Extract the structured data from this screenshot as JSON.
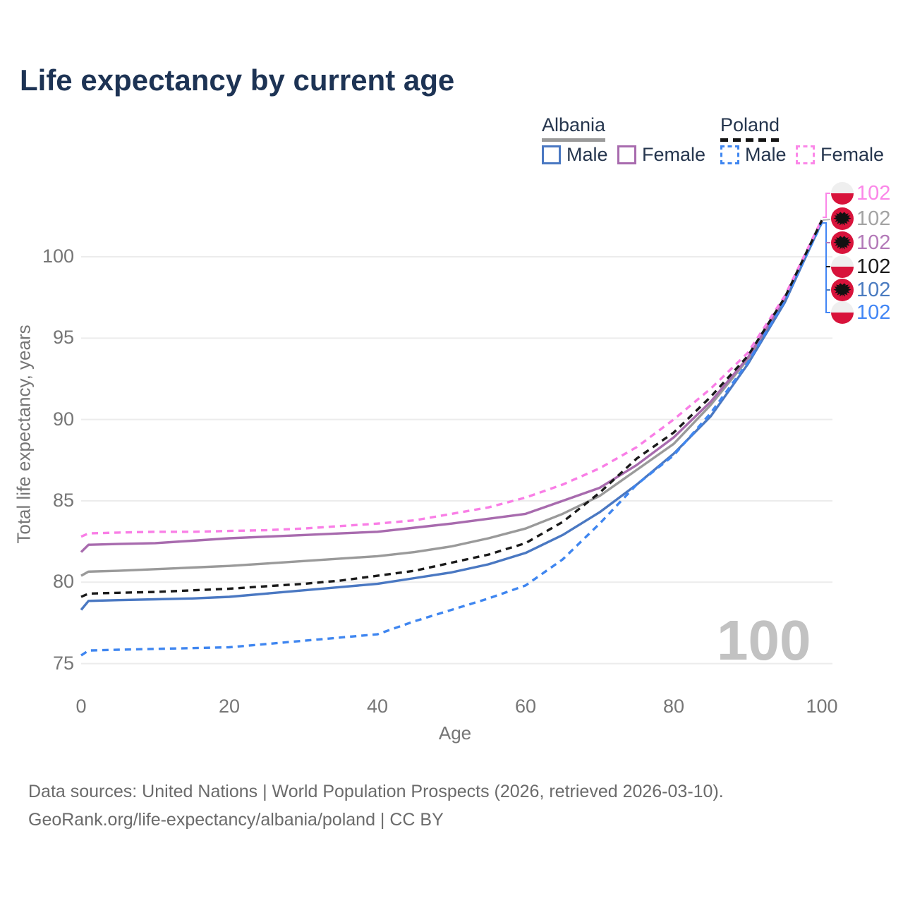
{
  "title": "Life expectancy by current age",
  "legend": {
    "groups": [
      {
        "label": "Albania",
        "line_style": "solid",
        "underline_color": "#9a9a9a",
        "items": [
          {
            "label": "Male",
            "color": "#4a78c2",
            "dash": false
          },
          {
            "label": "Female",
            "color": "#a86bae",
            "dash": false
          }
        ]
      },
      {
        "label": "Poland",
        "line_style": "dashed",
        "underline_color": "#151515",
        "items": [
          {
            "label": "Male",
            "color": "#3f86f0",
            "dash": true
          },
          {
            "label": "Female",
            "color": "#fb87e8",
            "dash": true
          }
        ]
      }
    ]
  },
  "watermark": "100",
  "footer": {
    "line1": "Data sources: United Nations | World Population Prospects (2026, retrieved 2026-03-10).",
    "line2": "GeoRank.org/life-expectancy/albania/poland | CC BY"
  },
  "chart_data": {
    "type": "line",
    "title": "Life expectancy by current age",
    "xlabel": "Age",
    "ylabel": "Total life expectancy, years",
    "xlim": [
      0,
      100
    ],
    "ylim": [
      75,
      103
    ],
    "x_ticks": [
      0,
      20,
      40,
      60,
      80,
      100
    ],
    "y_ticks": [
      75,
      80,
      85,
      90,
      95,
      100
    ],
    "grid": "horizontal-only",
    "legend_position": "top-right",
    "x": [
      0,
      1,
      5,
      10,
      15,
      20,
      25,
      30,
      35,
      40,
      45,
      50,
      55,
      60,
      65,
      70,
      75,
      80,
      85,
      90,
      95,
      100
    ],
    "series": [
      {
        "name": "Albania Total",
        "country": "Albania",
        "sex": "total",
        "color": "#9a9a9a",
        "dash": false,
        "values": [
          80.4,
          80.65,
          80.7,
          80.8,
          80.9,
          81.0,
          81.15,
          81.3,
          81.45,
          81.6,
          81.85,
          82.2,
          82.7,
          83.3,
          84.2,
          85.3,
          86.9,
          88.5,
          90.9,
          93.7,
          97.3,
          102.2
        ]
      },
      {
        "name": "Albania Female",
        "country": "Albania",
        "sex": "female",
        "color": "#a86bae",
        "dash": false,
        "values": [
          81.85,
          82.3,
          82.35,
          82.4,
          82.55,
          82.7,
          82.8,
          82.9,
          83.0,
          83.1,
          83.35,
          83.6,
          83.9,
          84.2,
          85.0,
          85.8,
          87.2,
          88.9,
          91.1,
          93.8,
          97.4,
          102.2
        ]
      },
      {
        "name": "Albania Male",
        "country": "Albania",
        "sex": "male",
        "color": "#4a78c2",
        "dash": false,
        "values": [
          78.3,
          78.85,
          78.9,
          78.95,
          79.0,
          79.1,
          79.3,
          79.5,
          79.7,
          79.9,
          80.25,
          80.6,
          81.1,
          81.8,
          82.9,
          84.3,
          86.0,
          87.9,
          90.2,
          93.4,
          97.2,
          102.15
        ]
      },
      {
        "name": "Poland Female",
        "country": "Poland",
        "sex": "female",
        "color": "#f97ee6",
        "dash": true,
        "values": [
          82.8,
          83.0,
          83.05,
          83.1,
          83.1,
          83.15,
          83.2,
          83.3,
          83.45,
          83.6,
          83.8,
          84.2,
          84.6,
          85.2,
          86.0,
          87.0,
          88.3,
          90.0,
          91.9,
          94.1,
          97.6,
          102.3
        ]
      },
      {
        "name": "Poland Male",
        "country": "Poland",
        "sex": "male",
        "color": "#3f86f0",
        "dash": true,
        "values": [
          75.5,
          75.8,
          75.85,
          75.9,
          75.95,
          76.0,
          76.2,
          76.4,
          76.6,
          76.8,
          77.6,
          78.3,
          79.0,
          79.8,
          81.4,
          83.6,
          86.0,
          87.8,
          90.4,
          93.5,
          97.3,
          102.1
        ]
      },
      {
        "name": "Poland Total",
        "country": "Poland",
        "sex": "total",
        "color": "#1a1a1a",
        "dash": true,
        "values": [
          79.1,
          79.3,
          79.35,
          79.4,
          79.5,
          79.6,
          79.75,
          79.9,
          80.1,
          80.4,
          80.7,
          81.2,
          81.7,
          82.4,
          83.7,
          85.5,
          87.6,
          89.2,
          91.4,
          93.9,
          97.5,
          102.25
        ]
      }
    ],
    "end_labels": [
      {
        "value": "102",
        "series": "Poland Female",
        "flag": "poland",
        "color": "#fb87e8"
      },
      {
        "value": "102",
        "series": "Albania Total",
        "flag": "albania",
        "color": "#a3a3a3"
      },
      {
        "value": "102",
        "series": "Albania Female",
        "flag": "albania",
        "color": "#b379b8"
      },
      {
        "value": "102",
        "series": "Poland Total",
        "flag": "poland",
        "color": "#1a1a1a"
      },
      {
        "value": "102",
        "series": "Albania Male",
        "flag": "albania",
        "color": "#4a7bc0"
      },
      {
        "value": "102",
        "series": "Poland Male",
        "flag": "poland",
        "color": "#4286f5"
      }
    ]
  }
}
